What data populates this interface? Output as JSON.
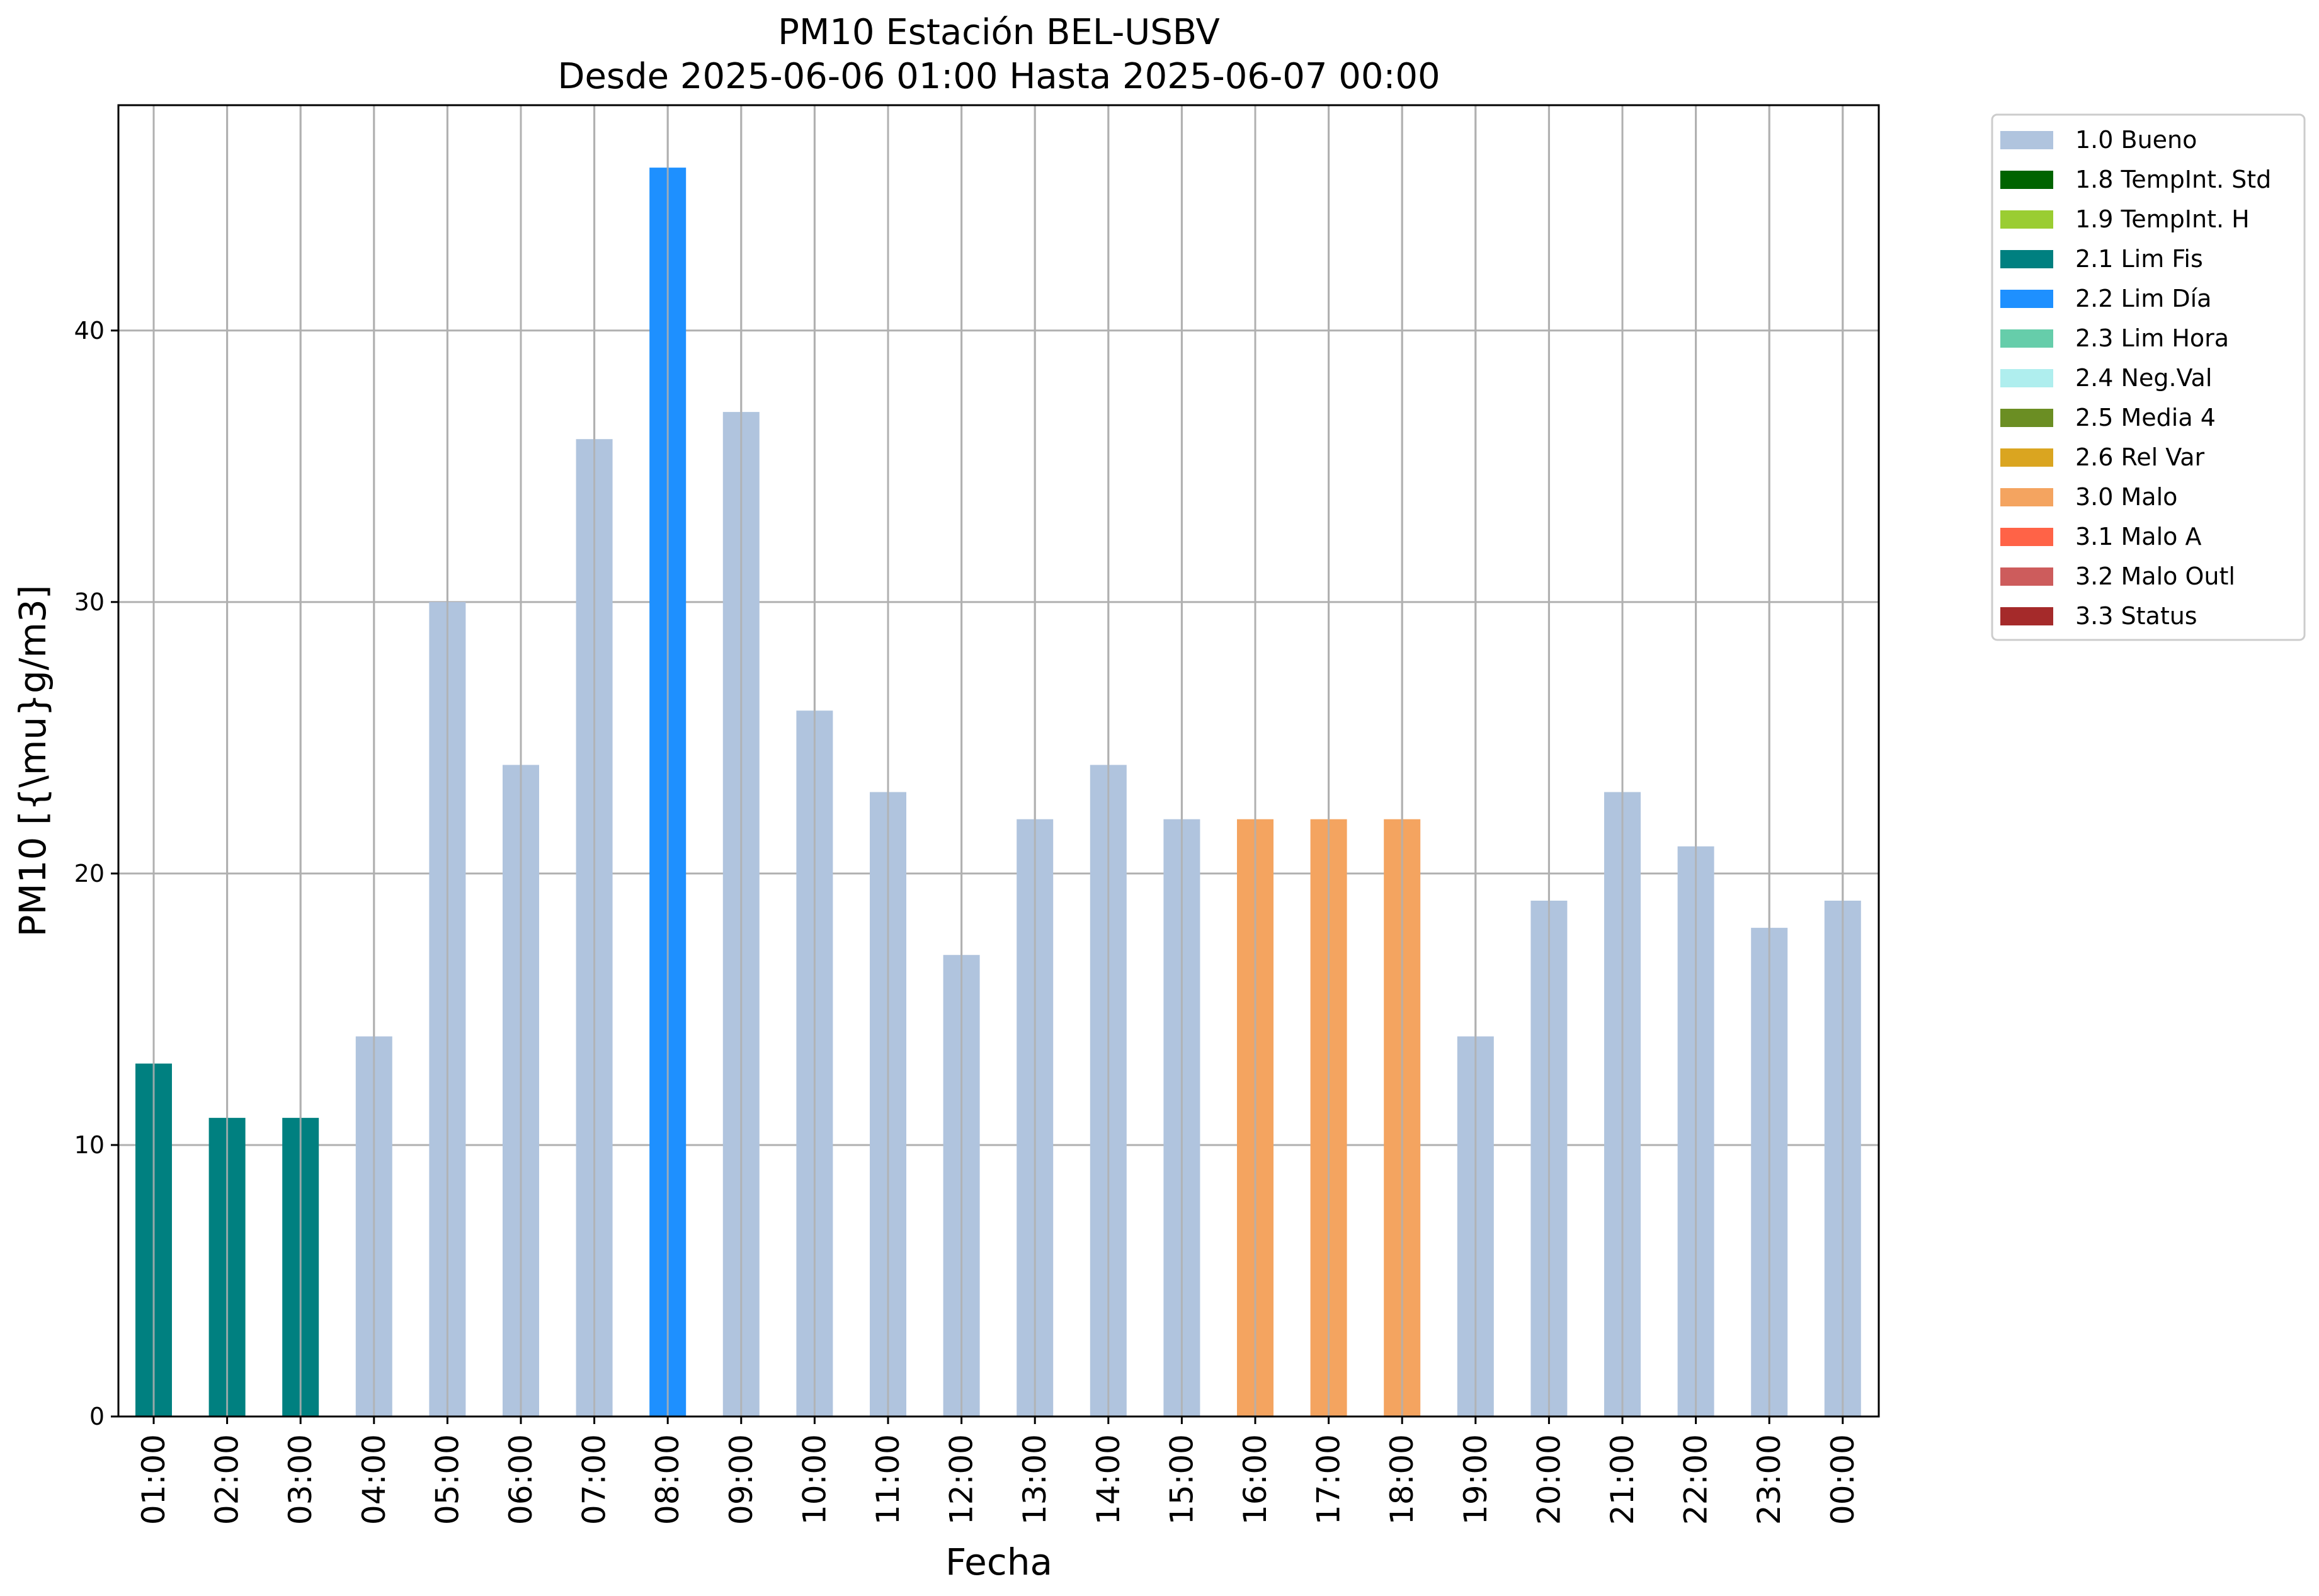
{
  "chart_data": {
    "type": "bar",
    "title": "PM10 Estación BEL-USBV",
    "subtitle": "Desde 2025-06-06 01:00 Hasta 2025-06-07 00:00",
    "xlabel": "Fecha",
    "ylabel": "PM10 [{\\mu}g/m3]",
    "ylim": [
      0,
      48.3
    ],
    "yticks": [
      0,
      10,
      20,
      30,
      40
    ],
    "grid": true,
    "legend_position": "outside-right",
    "categories": [
      "01:00",
      "02:00",
      "03:00",
      "04:00",
      "05:00",
      "06:00",
      "07:00",
      "08:00",
      "09:00",
      "10:00",
      "11:00",
      "12:00",
      "13:00",
      "14:00",
      "15:00",
      "16:00",
      "17:00",
      "18:00",
      "19:00",
      "20:00",
      "21:00",
      "22:00",
      "23:00",
      "00:00"
    ],
    "values": [
      13,
      11,
      11,
      14,
      30,
      24,
      36,
      46,
      37,
      26,
      23,
      17,
      22,
      24,
      22,
      22,
      22,
      22,
      14,
      19,
      23,
      21,
      18,
      19
    ],
    "flags": [
      "2.1 Lim Fis",
      "2.1 Lim Fis",
      "2.1 Lim Fis",
      "1.0 Bueno",
      "1.0 Bueno",
      "1.0 Bueno",
      "1.0 Bueno",
      "2.2 Lim Día",
      "1.0 Bueno",
      "1.0 Bueno",
      "1.0 Bueno",
      "1.0 Bueno",
      "1.0 Bueno",
      "1.0 Bueno",
      "1.0 Bueno",
      "3.0 Malo",
      "3.0 Malo",
      "3.0 Malo",
      "1.0 Bueno",
      "1.0 Bueno",
      "1.0 Bueno",
      "1.0 Bueno",
      "1.0 Bueno",
      "1.0 Bueno"
    ],
    "legend": [
      {
        "label": "1.0 Bueno",
        "color": "#b0c4de"
      },
      {
        "label": "1.8 TempInt. Std",
        "color": "#006400"
      },
      {
        "label": "1.9 TempInt. H",
        "color": "#9acd32"
      },
      {
        "label": "2.1 Lim Fis",
        "color": "#008080"
      },
      {
        "label": "2.2 Lim Día",
        "color": "#1e90ff"
      },
      {
        "label": "2.3 Lim Hora",
        "color": "#66cdaa"
      },
      {
        "label": "2.4 Neg.Val",
        "color": "#afeeee"
      },
      {
        "label": "2.5 Media 4",
        "color": "#6b8e23"
      },
      {
        "label": "2.6 Rel Var",
        "color": "#daa520"
      },
      {
        "label": "3.0 Malo",
        "color": "#f4a460"
      },
      {
        "label": "3.1 Malo A",
        "color": "#ff6347"
      },
      {
        "label": "3.2 Malo Outl",
        "color": "#cd5c5c"
      },
      {
        "label": "3.3 Status",
        "color": "#a52a2a"
      }
    ]
  }
}
